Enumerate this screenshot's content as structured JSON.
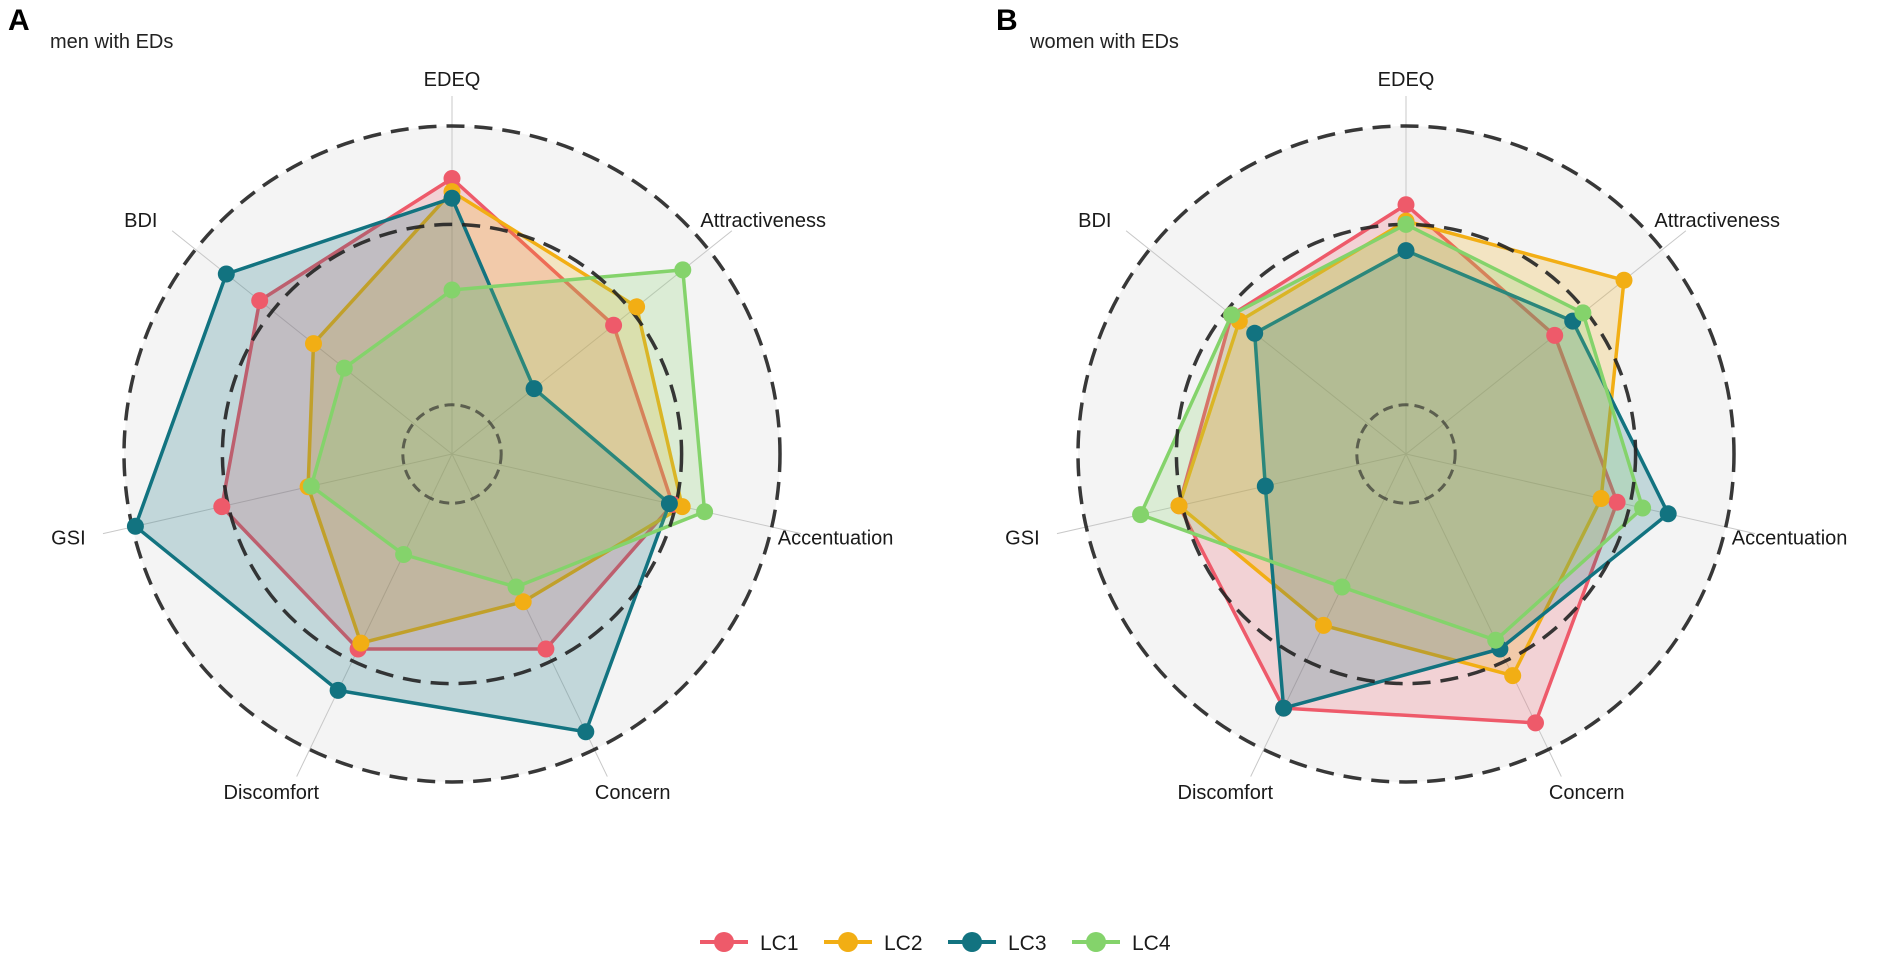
{
  "chart_data": [
    {
      "type": "radar",
      "panel": "A",
      "title": "men with EDs",
      "axes": [
        "EDEQ",
        "Attractiveness",
        "Accentuation",
        "Concern",
        "Discomfort",
        "GSI",
        "BDI"
      ],
      "series": [
        {
          "name": "LC1",
          "values": [
            0.84,
            0.63,
            0.69,
            0.66,
            0.66,
            0.72,
            0.75
          ]
        },
        {
          "name": "LC2",
          "values": [
            0.8,
            0.72,
            0.72,
            0.5,
            0.64,
            0.45,
            0.54
          ]
        },
        {
          "name": "LC3",
          "values": [
            0.78,
            0.32,
            0.68,
            0.94,
            0.8,
            0.99,
            0.88
          ]
        },
        {
          "name": "LC4",
          "values": [
            0.5,
            0.9,
            0.79,
            0.45,
            0.34,
            0.44,
            0.42
          ]
        }
      ],
      "reference_rings": [
        0.15,
        0.7,
        1.0
      ]
    },
    {
      "type": "radar",
      "panel": "B",
      "title": "women with EDs",
      "axes": [
        "EDEQ",
        "Attractiveness",
        "Accentuation",
        "Concern",
        "Discomfort",
        "GSI",
        "BDI"
      ],
      "series": [
        {
          "name": "LC1",
          "values": [
            0.76,
            0.58,
            0.66,
            0.91,
            0.86,
            0.71,
            0.68
          ]
        },
        {
          "name": "LC2",
          "values": [
            0.71,
            0.85,
            0.61,
            0.75,
            0.58,
            0.71,
            0.65
          ]
        },
        {
          "name": "LC3",
          "values": [
            0.62,
            0.65,
            0.82,
            0.66,
            0.86,
            0.44,
            0.59
          ]
        },
        {
          "name": "LC4",
          "values": [
            0.7,
            0.69,
            0.74,
            0.63,
            0.45,
            0.83,
            0.68
          ]
        }
      ],
      "reference_rings": [
        0.15,
        0.7,
        1.0
      ]
    }
  ],
  "legend": [
    {
      "name": "LC1",
      "color": "#EE5A6A"
    },
    {
      "name": "LC2",
      "color": "#F2AE14"
    },
    {
      "name": "LC3",
      "color": "#127380"
    },
    {
      "name": "LC4",
      "color": "#84D36B"
    }
  ]
}
